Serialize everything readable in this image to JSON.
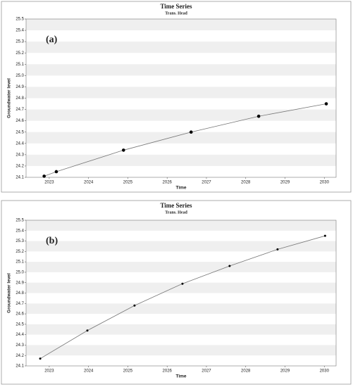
{
  "chart_data": [
    {
      "type": "line",
      "title": "Time Series",
      "subtitle": "Trans. Head",
      "annotation": "(a)",
      "x_label": "Time",
      "y_label": "Groundwater level",
      "x": [
        2022.87,
        2023.18,
        2024.89,
        2026.61,
        2028.33,
        2030.05
      ],
      "series": [
        {
          "name": "Trans. Head",
          "color": "#000000",
          "values": [
            24.11,
            24.15,
            24.34,
            24.5,
            24.64,
            24.75
          ]
        }
      ],
      "xlim": [
        2022.41,
        2030.3
      ],
      "xticks": [
        2023,
        2024,
        2025,
        2026,
        2027,
        2028,
        2029,
        2030
      ],
      "ylim": [
        24.1,
        25.5
      ],
      "yticks": [
        24.1,
        24.2,
        24.3,
        24.4,
        24.5,
        24.6,
        24.7,
        24.8,
        24.9,
        {
          "value": 25,
          "label": "25.0"
        },
        25.1,
        25.2,
        25.3,
        25.4,
        25.5
      ],
      "grid": true
    },
    {
      "type": "line",
      "title": "Time Series",
      "subtitle": "Trans. Head",
      "annotation": "(b)",
      "x_label": "Time",
      "y_label": "Groundwater level",
      "x": [
        2022.77,
        2023.97,
        2025.17,
        2026.39,
        2027.59,
        2028.81,
        2030.02
      ],
      "series": [
        {
          "name": "Trans. Head",
          "color": "#000000",
          "values": [
            24.17,
            24.44,
            24.68,
            24.89,
            25.06,
            25.22,
            25.35
          ]
        }
      ],
      "xlim": [
        2022.41,
        2030.3
      ],
      "xticks": [
        2023,
        2024,
        2025,
        2026,
        2027,
        2028,
        2029,
        2030
      ],
      "ylim": [
        24.1,
        25.5
      ],
      "yticks": [
        24.1,
        24.2,
        24.3,
        24.4,
        24.5,
        24.6,
        24.7,
        24.8,
        24.9,
        {
          "value": 25,
          "label": "25.0"
        },
        25.1,
        25.2,
        25.3,
        25.4,
        25.5
      ],
      "grid": true
    }
  ]
}
